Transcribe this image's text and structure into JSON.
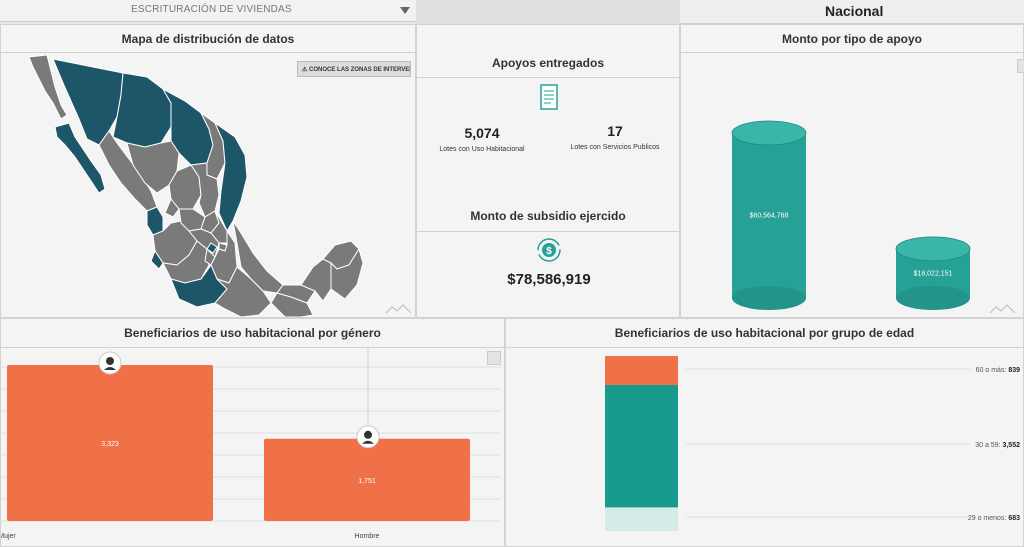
{
  "top": {
    "dropdown_value": "ESCRITURACIÓN DE VIVIENDAS",
    "scope": "Nacional"
  },
  "map": {
    "title": "Mapa de distribución de datos",
    "zones_button": "⚠ CONOCE LAS ZONAS DE INTERVENCI"
  },
  "apoyos": {
    "title": "Apoyos entregados",
    "lotes_habitacional_value": "5,074",
    "lotes_habitacional_label": "Lotes con Uso Habitacional",
    "lotes_servicios_value": "17",
    "lotes_servicios_label": "Lotes con Servicios Publicos",
    "subsidio_title": "Monto de subsidio ejercido",
    "subsidio_value": "$78,586,919"
  },
  "monto": {
    "title": "Monto por tipo de apoyo",
    "chart_data": {
      "type": "bar",
      "categories": [
        "Lotes con Uso Habitacional",
        "Lotes con Servicios Públicos"
      ],
      "values": [
        60564768,
        18022151
      ],
      "value_labels": [
        "$60,564,768",
        "$18,022,151"
      ]
    }
  },
  "genero": {
    "title": "Beneficiarios de uso habitacional por género",
    "chart_data": {
      "type": "bar",
      "categories": [
        "Mujer",
        "Hombre"
      ],
      "values": [
        3323,
        1751
      ],
      "value_labels": [
        "3,323",
        "1,751"
      ]
    }
  },
  "edad": {
    "title": "Beneficiarios de uso habitacional por grupo de edad",
    "chart_data": {
      "type": "bar",
      "stacked": true,
      "series": [
        {
          "name": "60 o más",
          "values": [
            839
          ]
        },
        {
          "name": "30 a 59",
          "values": [
            3552
          ]
        },
        {
          "name": "29 o menos",
          "values": [
            683
          ]
        }
      ],
      "legend": [
        {
          "label": "60 o más:",
          "value": "839"
        },
        {
          "label": "30 a 59:",
          "value": "3,552"
        },
        {
          "label": "29 o menos:",
          "value": "683"
        }
      ]
    }
  },
  "colors": {
    "teal_dark": "#1d5668",
    "map_gray": "#7a7a7a",
    "cylinder": "#26a196",
    "orange": "#f07048",
    "teal_stack": "#189b8d",
    "light_stack": "#d3ece7"
  }
}
